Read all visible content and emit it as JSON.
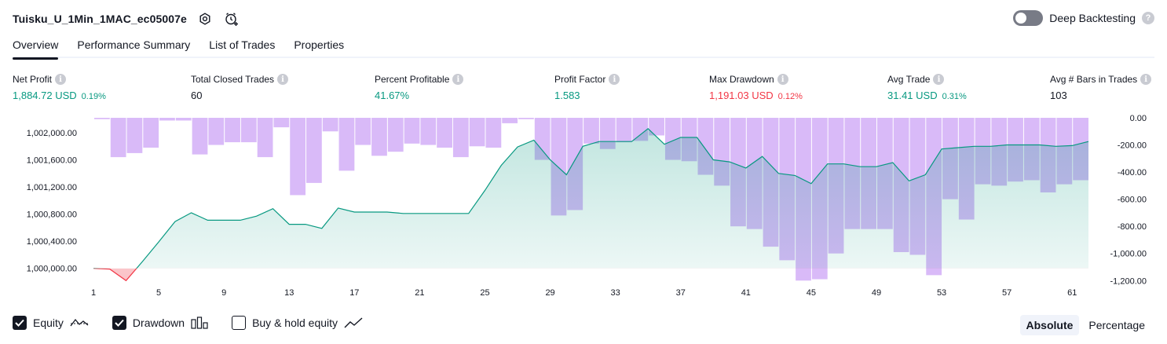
{
  "header": {
    "strategy_name": "Tuisku_U_1Min_1MAC_ec05007e",
    "settings_icon": "settings-icon",
    "alert_icon": "add-alert-icon"
  },
  "deep_backtesting": {
    "label": "Deep Backtesting",
    "enabled": false,
    "help": "?"
  },
  "tabs": [
    {
      "label": "Overview",
      "active": true
    },
    {
      "label": "Performance Summary",
      "active": false
    },
    {
      "label": "List of Trades",
      "active": false
    },
    {
      "label": "Properties",
      "active": false
    }
  ],
  "stats": [
    {
      "label": "Net Profit",
      "value": "1,884.72 USD",
      "pct": "0.19%",
      "color": "#089981"
    },
    {
      "label": "Total Closed Trades",
      "value": "60",
      "pct": "",
      "color": "#131722"
    },
    {
      "label": "Percent Profitable",
      "value": "41.67%",
      "pct": "",
      "color": "#089981"
    },
    {
      "label": "Profit Factor",
      "value": "1.583",
      "pct": "",
      "color": "#089981"
    },
    {
      "label": "Max Drawdown",
      "value": "1,191.03 USD",
      "pct": "0.12%",
      "color": "#f23645"
    },
    {
      "label": "Avg Trade",
      "value": "31.41 USD",
      "pct": "0.31%",
      "color": "#089981"
    },
    {
      "label": "Avg # Bars in Trades",
      "value": "103",
      "pct": "",
      "color": "#131722"
    }
  ],
  "info_icon_glyph": "i",
  "chart_data": {
    "type": "line+bar",
    "x_ticks": [
      1,
      5,
      9,
      13,
      17,
      21,
      25,
      29,
      33,
      37,
      41,
      45,
      49,
      53,
      57,
      61
    ],
    "left_axis": {
      "label": "Equity",
      "ticks": [
        "1,000,000.00",
        "1,000,400.00",
        "1,000,800.00",
        "1,001,200.00",
        "1,001,600.00",
        "1,002,000.00"
      ],
      "ylim": [
        999800,
        1002220
      ],
      "baseline": 1000000
    },
    "right_axis": {
      "label": "Drawdown",
      "ticks": [
        "0.00",
        "-200.00",
        "-400.00",
        "-600.00",
        "-800.00",
        "-1,000.00",
        "-1,200.00"
      ],
      "ylim": [
        -1210,
        0
      ]
    },
    "series": [
      {
        "name": "Equity",
        "color": "#089981",
        "negative_color": "#f23645",
        "values": [
          1000000,
          999990,
          999820,
          1000100,
          1000390,
          1000690,
          1000820,
          1000710,
          1000710,
          1000710,
          1000770,
          1000880,
          1000650,
          1000650,
          1000590,
          1000890,
          1000830,
          1000830,
          1000830,
          1000810,
          1000810,
          1000810,
          1000810,
          1000810,
          1001150,
          1001520,
          1001790,
          1001890,
          1001600,
          1001380,
          1001800,
          1001870,
          1001870,
          1001870,
          1002060,
          1001830,
          1001930,
          1001930,
          1001600,
          1001570,
          1001480,
          1001650,
          1001400,
          1001370,
          1001250,
          1001540,
          1001540,
          1001500,
          1001500,
          1001560,
          1001290,
          1001380,
          1001760,
          1001780,
          1001800,
          1001800,
          1001820,
          1001820,
          1001820,
          1001800,
          1001810,
          1001870
        ]
      },
      {
        "name": "Drawdown",
        "color": "#c99df5",
        "values": [
          -10,
          -290,
          -260,
          -220,
          -20,
          -20,
          -270,
          -200,
          -180,
          -180,
          -290,
          -70,
          -570,
          -480,
          -100,
          -390,
          -200,
          -280,
          -250,
          -190,
          -200,
          -220,
          -290,
          -210,
          -220,
          -40,
          -10,
          -310,
          -720,
          -680,
          -190,
          -230,
          -180,
          -170,
          -130,
          -310,
          -320,
          -420,
          -500,
          -800,
          -820,
          -950,
          -1050,
          -1200,
          -1190,
          -1000,
          -820,
          -820,
          -820,
          -990,
          -1010,
          -1160,
          -600,
          -750,
          -490,
          -500,
          -470,
          -460,
          -550,
          -490,
          -460
        ]
      }
    ]
  },
  "legend": [
    {
      "label": "Equity",
      "checked": true,
      "icon": "equity-line-icon"
    },
    {
      "label": "Drawdown",
      "checked": true,
      "icon": "drawdown-bars-icon"
    },
    {
      "label": "Buy & hold equity",
      "checked": false,
      "icon": "buy-hold-line-icon"
    }
  ],
  "modes": [
    {
      "label": "Absolute",
      "active": true
    },
    {
      "label": "Percentage",
      "active": false
    }
  ]
}
